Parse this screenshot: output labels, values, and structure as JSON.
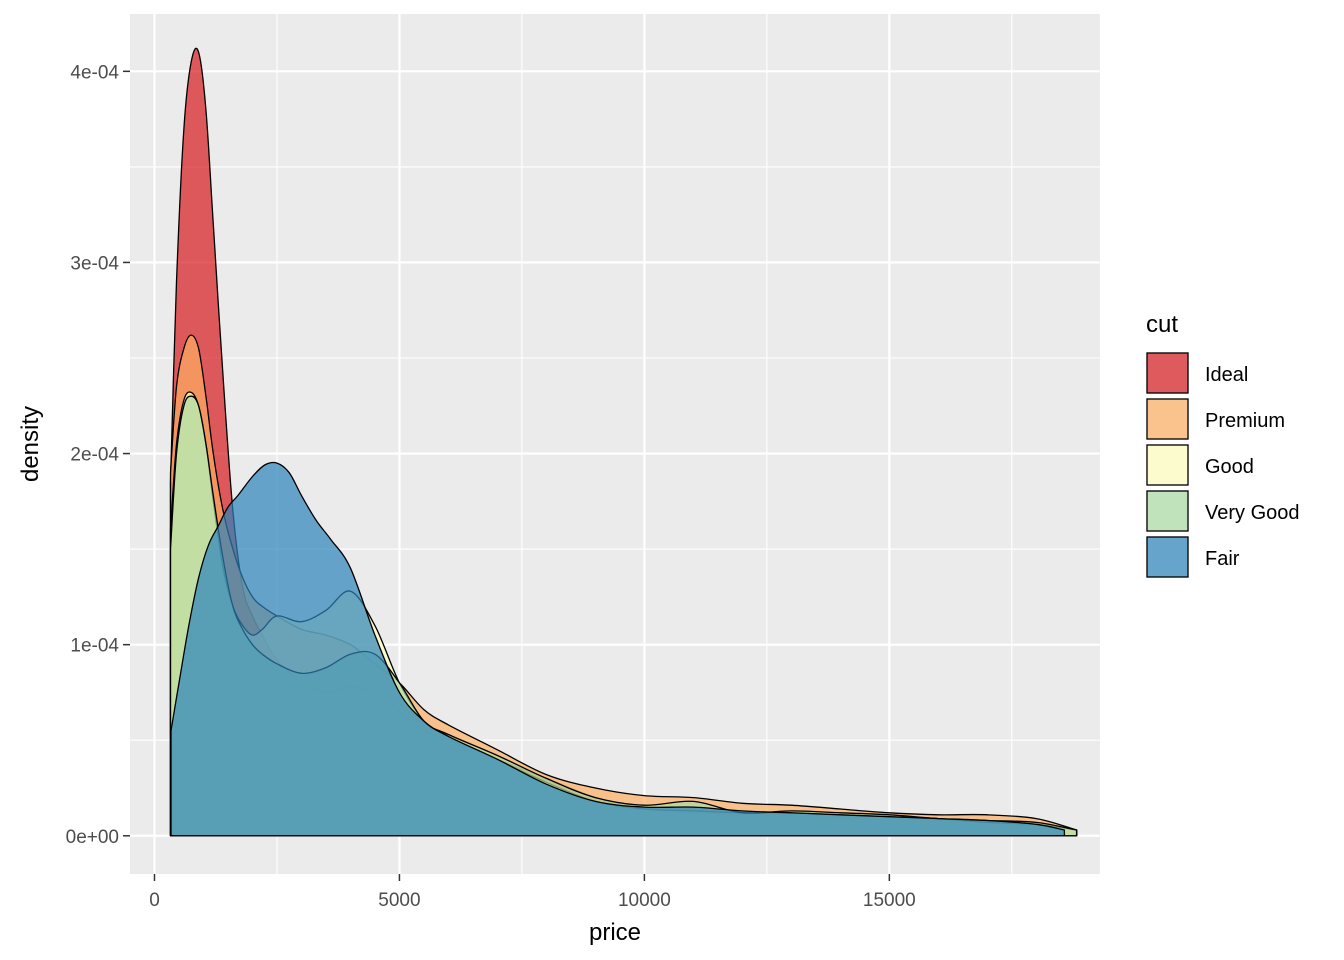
{
  "chart_data": {
    "type": "area",
    "xlabel": "price",
    "ylabel": "density",
    "xlim": [
      -500,
      19300
    ],
    "ylim": [
      -2e-05,
      0.00043
    ],
    "x_ticks": [
      0,
      5000,
      10000,
      15000
    ],
    "x_tick_labels": [
      "0",
      "5000",
      "10000",
      "15000"
    ],
    "y_ticks": [
      0,
      0.0001,
      0.0002,
      0.0003,
      0.0004
    ],
    "y_tick_labels": [
      "0e+00",
      "1e-04",
      "2e-04",
      "3e-04",
      "4e-04"
    ],
    "grid": true,
    "legend": {
      "title": "cut",
      "position": "right"
    },
    "series": [
      {
        "name": "Ideal",
        "color": "#D7191C",
        "x": [
          326,
          450,
          600,
          750,
          900,
          1050,
          1200,
          1400,
          1600,
          1800,
          2000,
          2200,
          2500,
          3000,
          3500,
          4000,
          4500,
          5000,
          5500,
          6000,
          7000,
          8000,
          9000,
          10000,
          11000,
          12000,
          13000,
          14000,
          15000,
          16000,
          17000,
          18000,
          18823
        ],
        "y": [
          0.000185,
          0.00029,
          0.00037,
          0.000405,
          0.00041,
          0.00038,
          0.00032,
          0.00024,
          0.00017,
          0.00013,
          0.000115,
          0.000105,
          9.2e-05,
          8e-05,
          7.5e-05,
          7.8e-05,
          7.5e-05,
          6.5e-05,
          5.5e-05,
          5e-05,
          4e-05,
          3e-05,
          2e-05,
          1.5e-05,
          1.2e-05,
          1.2e-05,
          1.2e-05,
          1e-05,
          1e-05,
          8e-06,
          7e-06,
          5e-06,
          3e-06
        ]
      },
      {
        "name": "Premium",
        "color": "#FDAE61",
        "x": [
          326,
          450,
          600,
          750,
          900,
          1050,
          1200,
          1400,
          1600,
          1800,
          2000,
          2200,
          2500,
          3000,
          3500,
          4000,
          4500,
          5000,
          5500,
          6000,
          7000,
          8000,
          9000,
          10000,
          11000,
          12000,
          13000,
          14000,
          15000,
          16000,
          17000,
          18000,
          18823
        ],
        "y": [
          0.00019,
          0.000235,
          0.000255,
          0.000262,
          0.000255,
          0.00023,
          0.0002,
          0.00017,
          0.00015,
          0.000135,
          0.000125,
          0.00012,
          0.000115,
          0.000108,
          0.000105,
          0.0001,
          9e-05,
          8e-05,
          6.6e-05,
          5.8e-05,
          4.5e-05,
          3.2e-05,
          2.5e-05,
          2.1e-05,
          2e-05,
          1.7e-05,
          1.6e-05,
          1.4e-05,
          1.2e-05,
          1.1e-05,
          1.1e-05,
          9e-06,
          3e-06
        ]
      },
      {
        "name": "Good",
        "color": "#FFFFBF",
        "x": [
          326,
          450,
          600,
          750,
          900,
          1050,
          1200,
          1400,
          1600,
          1800,
          2000,
          2200,
          2500,
          3000,
          3500,
          4000,
          4500,
          5000,
          5500,
          6000,
          7000,
          8000,
          9000,
          10000,
          11000,
          12000,
          13000,
          14000,
          15000,
          16000,
          17000,
          18000,
          18823
        ],
        "y": [
          0.00016,
          0.000205,
          0.000228,
          0.000232,
          0.000225,
          0.000205,
          0.000175,
          0.00014,
          0.00012,
          0.00011,
          0.000105,
          0.000108,
          0.000115,
          0.000112,
          0.000118,
          0.000128,
          0.00011,
          8e-05,
          6e-05,
          5.2e-05,
          4e-05,
          2.8e-05,
          1.8e-05,
          1.4e-05,
          1.3e-05,
          1.2e-05,
          1.2e-05,
          1.1e-05,
          1e-05,
          9e-06,
          7e-06,
          6e-06,
          3e-06
        ]
      },
      {
        "name": "Very Good",
        "color": "#ABDDA4",
        "x": [
          326,
          450,
          600,
          750,
          900,
          1050,
          1200,
          1400,
          1600,
          1800,
          2000,
          2200,
          2500,
          3000,
          3500,
          4000,
          4500,
          5000,
          5500,
          6000,
          7000,
          8000,
          9000,
          10000,
          11000,
          12000,
          13000,
          14000,
          15000,
          16000,
          17000,
          18000,
          18823
        ],
        "y": [
          0.00015,
          0.0002,
          0.000225,
          0.00023,
          0.000225,
          0.000205,
          0.000178,
          0.000145,
          0.00012,
          0.000108,
          0.0001,
          9.5e-05,
          9e-05,
          8.5e-05,
          8.8e-05,
          9.5e-05,
          9.5e-05,
          8e-05,
          6e-05,
          5.3e-05,
          4.2e-05,
          3e-05,
          2e-05,
          1.6e-05,
          1.8e-05,
          1.2e-05,
          1.3e-05,
          1.2e-05,
          1.1e-05,
          9e-06,
          8e-06,
          7e-06,
          3e-06
        ]
      },
      {
        "name": "Fair",
        "color": "#2B83BA",
        "x": [
          337,
          500,
          700,
          900,
          1100,
          1300,
          1500,
          1700,
          2000,
          2250,
          2500,
          2750,
          3000,
          3300,
          3600,
          4000,
          4500,
          5000,
          5500,
          6000,
          7000,
          8000,
          9000,
          10000,
          11000,
          12000,
          13000,
          14000,
          15000,
          16000,
          17000,
          18000,
          18574
        ],
        "y": [
          5.5e-05,
          8e-05,
          0.00011,
          0.000135,
          0.000152,
          0.000162,
          0.000172,
          0.000178,
          0.000188,
          0.000194,
          0.000195,
          0.00019,
          0.000178,
          0.000165,
          0.000155,
          0.00014,
          0.000105,
          7.5e-05,
          6e-05,
          5.2e-05,
          4e-05,
          2.7e-05,
          1.8e-05,
          1.5e-05,
          1.5e-05,
          1.3e-05,
          1.2e-05,
          1.1e-05,
          1e-05,
          9e-06,
          8e-06,
          6e-06,
          3e-06
        ]
      }
    ]
  }
}
